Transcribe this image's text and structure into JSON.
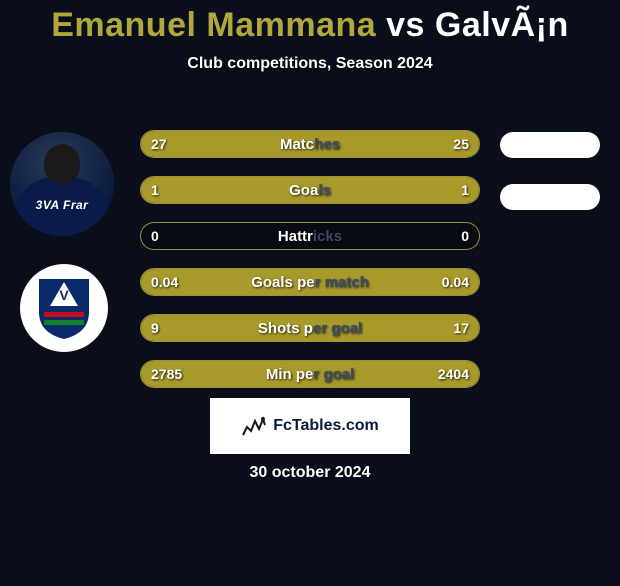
{
  "title": {
    "player1_name": "Emanuel Mammana",
    "vs_word": "vs",
    "player2_name": "GalvÃ¡n",
    "player1_color": "#b0a83a",
    "player2_color": "#ffffff",
    "fontsize": 34
  },
  "subtitle": "Club competitions, Season 2024",
  "subtitle_color": "#ffffff",
  "background_color": "#0a0e1a",
  "stats": {
    "bar_fill_color": "#a89a2a",
    "bar_border_color": "#aaa03c",
    "bar_empty_color": "rgba(0,0,0,0.2)",
    "label_left_color": "#ffffff",
    "label_right_color": "#3a4a6a",
    "value_color": "#ffffff",
    "rows": [
      {
        "label": "Matches",
        "left": "27",
        "right": "25",
        "fill_left_pct": 52,
        "fill_right_pct": 48
      },
      {
        "label": "Goals",
        "left": "1",
        "right": "1",
        "fill_left_pct": 50,
        "fill_right_pct": 50
      },
      {
        "label": "Hattricks",
        "left": "0",
        "right": "0",
        "fill_left_pct": 0,
        "fill_right_pct": 0
      },
      {
        "label": "Goals per match",
        "left": "0.04",
        "right": "0.04",
        "fill_left_pct": 50,
        "fill_right_pct": 50
      },
      {
        "label": "Shots per goal",
        "left": "9",
        "right": "17",
        "fill_left_pct": 35,
        "fill_right_pct": 65
      },
      {
        "label": "Min per goal",
        "left": "2785",
        "right": "2404",
        "fill_left_pct": 54,
        "fill_right_pct": 46
      }
    ]
  },
  "player_photo": {
    "sponsor_text": "3VA Frar",
    "jersey_color": "#0a1a4a",
    "bg_gradient_inner": "#2a3a5a",
    "bg_gradient_outer": "#0a1a3a"
  },
  "club_badge": {
    "bg": "#ffffff",
    "shield_colors": {
      "top": "#0a2a6a",
      "v_color": "#ffffff",
      "band_red": "#c01020",
      "band_green": "#108030",
      "outline": "#0a2a6a"
    }
  },
  "right_pills": {
    "color": "#ffffff",
    "count": 2
  },
  "footer_box": {
    "bg": "#ffffff",
    "text": "FcTables.com",
    "text_color": "#0a1a3a",
    "icon_color": "#1a1a1a"
  },
  "date_line": "30 october 2024"
}
